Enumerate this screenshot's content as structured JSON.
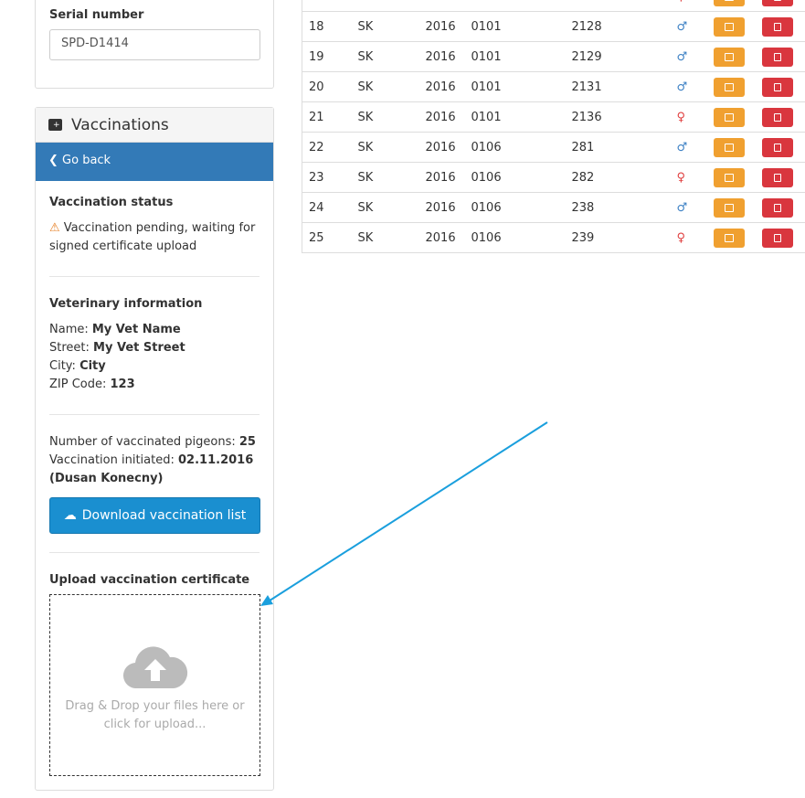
{
  "serial": {
    "label": "Serial number",
    "value": "SPD-D1414"
  },
  "vaccinations": {
    "title": "Vaccinations",
    "back": "Go back",
    "status_title": "Vaccination status",
    "status_text": "Vaccination pending, waiting for signed certificate upload",
    "vet_title": "Veterinary information",
    "vet": {
      "name_label": "Name:",
      "name": "My Vet Name",
      "street_label": "Street:",
      "street": "My Vet Street",
      "city_label": "City:",
      "city": "City",
      "zip_label": "ZIP Code:",
      "zip": "123"
    },
    "count_label": "Number of vaccinated pigeons:",
    "count": "25",
    "initiated_label": "Vaccination initiated:",
    "initiated": "02.11.2016",
    "initiated_by": "(Dusan Konecny)",
    "download": "Download vaccination list",
    "upload_title": "Upload vaccination certificate",
    "upload_text": "Drag & Drop your files here or click for upload..."
  },
  "rows": [
    {
      "n": "",
      "c": "",
      "y": "",
      "o": "",
      "r": "",
      "s": "female"
    },
    {
      "n": "18",
      "c": "SK",
      "y": "2016",
      "o": "0101",
      "r": "2128",
      "s": "male"
    },
    {
      "n": "19",
      "c": "SK",
      "y": "2016",
      "o": "0101",
      "r": "2129",
      "s": "male"
    },
    {
      "n": "20",
      "c": "SK",
      "y": "2016",
      "o": "0101",
      "r": "2131",
      "s": "male"
    },
    {
      "n": "21",
      "c": "SK",
      "y": "2016",
      "o": "0101",
      "r": "2136",
      "s": "female"
    },
    {
      "n": "22",
      "c": "SK",
      "y": "2016",
      "o": "0106",
      "r": "281",
      "s": "male"
    },
    {
      "n": "23",
      "c": "SK",
      "y": "2016",
      "o": "0106",
      "r": "282",
      "s": "female"
    },
    {
      "n": "24",
      "c": "SK",
      "y": "2016",
      "o": "0106",
      "r": "238",
      "s": "male"
    },
    {
      "n": "25",
      "c": "SK",
      "y": "2016",
      "o": "0106",
      "r": "239",
      "s": "female"
    }
  ],
  "colors": {
    "primary": "#337ab7",
    "download": "#1a8fd0",
    "edit": "#f0a030",
    "delete": "#d9363e",
    "warning": "#e67e22",
    "arrow": "#1a9fdd"
  }
}
